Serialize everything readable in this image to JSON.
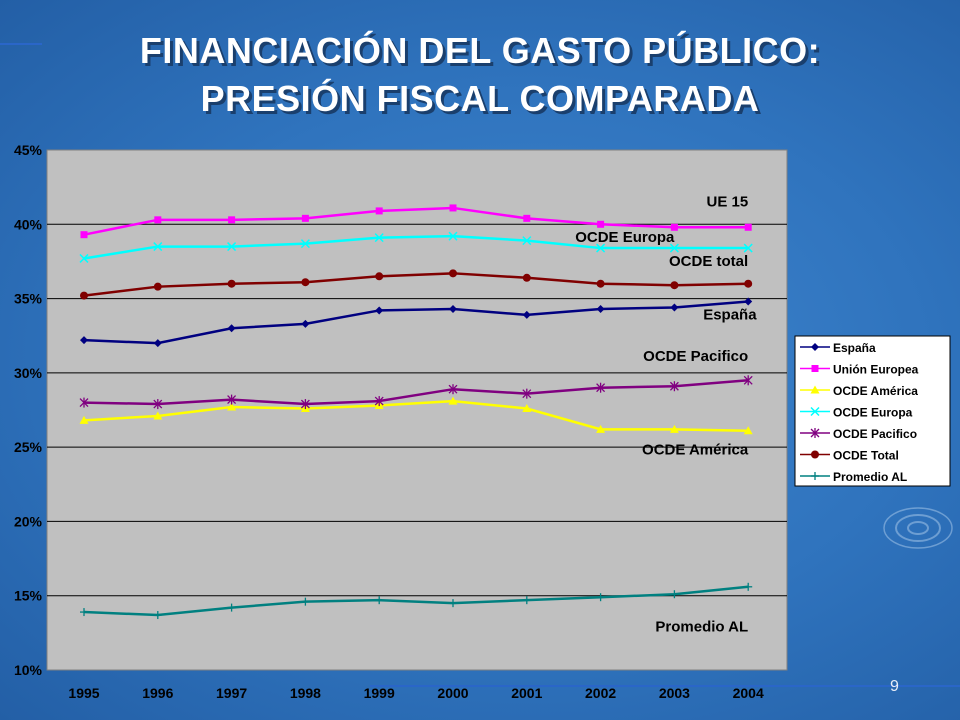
{
  "title_line1": "FINANCIACIÓN DEL GASTO PÚBLICO:",
  "title_line2": "PRESIÓN FISCAL COMPARADA",
  "page_number": "9",
  "chart_data": {
    "type": "line",
    "categories": [
      "1995",
      "1996",
      "1997",
      "1998",
      "1999",
      "2000",
      "2001",
      "2002",
      "2003",
      "2004"
    ],
    "y_ticks": [
      "10%",
      "15%",
      "20%",
      "25%",
      "30%",
      "35%",
      "40%",
      "45%"
    ],
    "ylim": [
      10,
      45
    ],
    "grid": true,
    "legend_position": "right",
    "series": [
      {
        "name": "España",
        "color": "#000080",
        "marker": "diamond",
        "values": [
          32.2,
          32.0,
          33.0,
          33.3,
          34.2,
          34.3,
          33.9,
          34.3,
          34.4,
          34.8
        ]
      },
      {
        "name": "Unión Europea",
        "color": "#ff00ff",
        "marker": "square",
        "values": [
          39.3,
          40.3,
          40.3,
          40.4,
          40.9,
          41.1,
          40.4,
          40.0,
          39.8,
          39.8
        ]
      },
      {
        "name": "OCDE América",
        "color": "#ffff00",
        "marker": "triangle",
        "values": [
          26.8,
          27.1,
          27.7,
          27.6,
          27.8,
          28.1,
          27.6,
          26.2,
          26.2,
          26.1
        ]
      },
      {
        "name": "OCDE Europa",
        "color": "#00ffff",
        "marker": "x",
        "values": [
          37.7,
          38.5,
          38.5,
          38.7,
          39.1,
          39.2,
          38.9,
          38.4,
          38.4,
          38.4
        ]
      },
      {
        "name": "OCDE Pacifico",
        "color": "#800080",
        "marker": "star",
        "values": [
          28.0,
          27.9,
          28.2,
          27.9,
          28.1,
          28.9,
          28.6,
          29.0,
          29.1,
          29.5
        ]
      },
      {
        "name": "OCDE Total",
        "color": "#800000",
        "marker": "circle",
        "values": [
          35.2,
          35.8,
          36.0,
          36.1,
          36.5,
          36.7,
          36.4,
          36.0,
          35.9,
          36.0
        ]
      },
      {
        "name": "Promedio AL",
        "color": "#008080",
        "marker": "plus",
        "values": [
          13.9,
          13.7,
          14.2,
          14.6,
          14.7,
          14.5,
          14.7,
          14.9,
          15.1,
          15.6
        ]
      }
    ],
    "annotations": [
      {
        "text": "UE 15",
        "x": "2004",
        "y": 41.2,
        "anchor": "end"
      },
      {
        "text": "OCDE Europa",
        "x": "2003",
        "y": 38.8,
        "anchor": "end"
      },
      {
        "text": "OCDE total",
        "x": "2004",
        "y": 37.2,
        "anchor": "end"
      },
      {
        "text": "España",
        "x": "2004",
        "y": 33.6,
        "anchor": "start"
      },
      {
        "text": "OCDE Pacifico",
        "x": "2004",
        "y": 30.8,
        "anchor": "end"
      },
      {
        "text": "OCDE América",
        "x": "2004",
        "y": 24.5,
        "anchor": "end"
      },
      {
        "text": "Promedio AL",
        "x": "2004",
        "y": 12.6,
        "anchor": "end"
      }
    ]
  }
}
